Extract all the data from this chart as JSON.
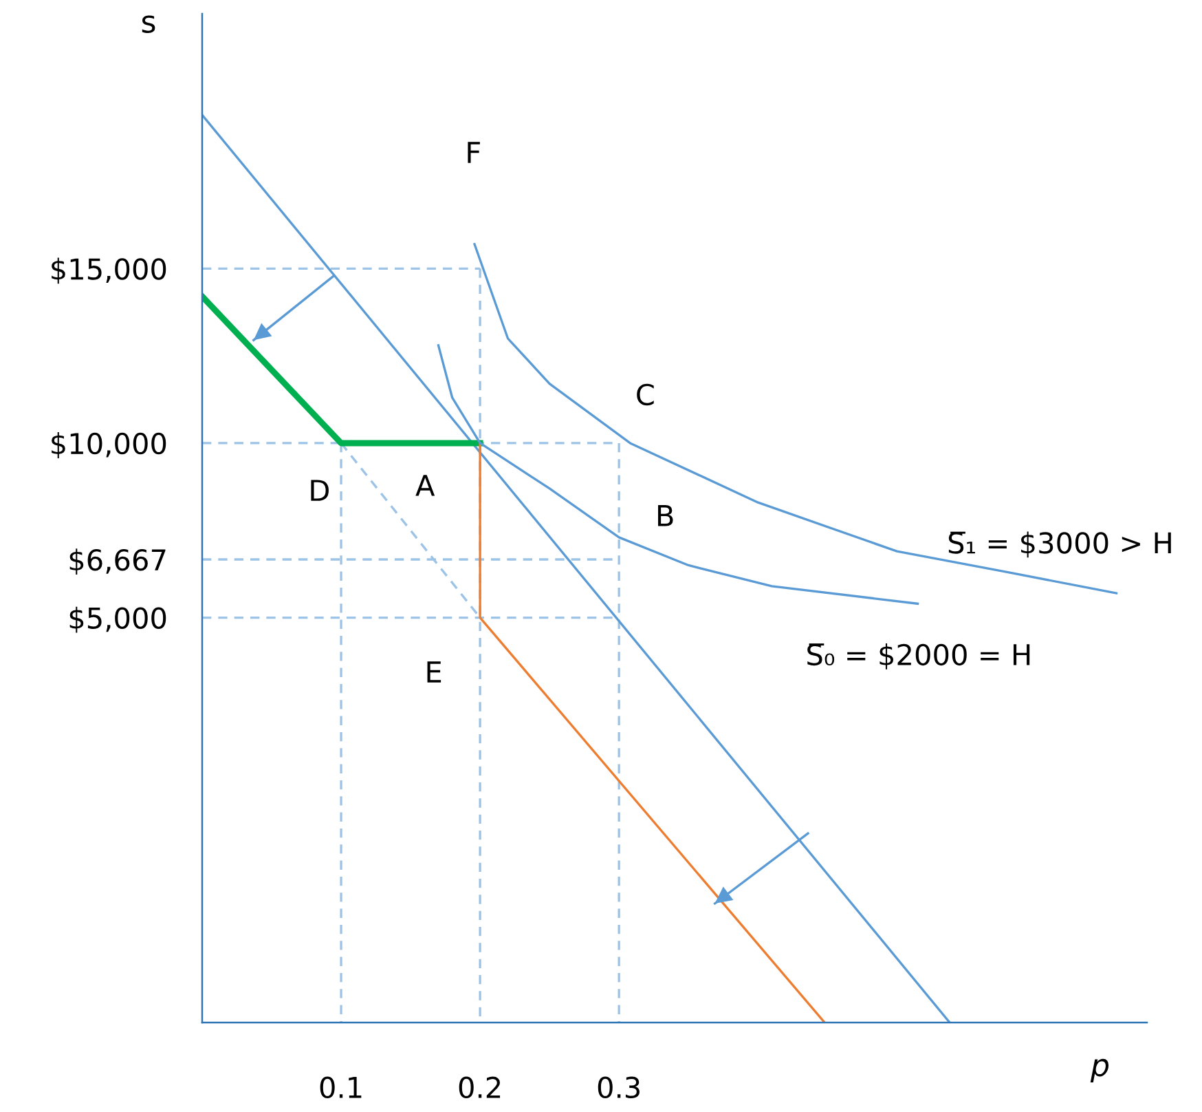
{
  "chart_data": {
    "type": "line",
    "xlabel": "p",
    "ylabel": "s",
    "xlim": [
      0,
      0.68
    ],
    "ylim": [
      -6600,
      22300
    ],
    "xticks": [
      0.1,
      0.2,
      0.3
    ],
    "yticks": [
      {
        "value": 5000,
        "label": "$5,000"
      },
      {
        "value": 6667,
        "label": "$6,667"
      },
      {
        "value": 10000,
        "label": "$10,000"
      },
      {
        "value": 15000,
        "label": "$15,000"
      }
    ],
    "grid": false,
    "series": [
      {
        "color": "#9dc3e6",
        "line_style": "dashed",
        "x": [
          0,
          0.2
        ],
        "values": [
          15000,
          15000
        ]
      },
      {
        "color": "#9dc3e6",
        "line_style": "dashed",
        "x": [
          0,
          0.3
        ],
        "values": [
          10000,
          10000
        ]
      },
      {
        "color": "#9dc3e6",
        "line_style": "dashed",
        "x": [
          0,
          0.3
        ],
        "values": [
          6667,
          6667
        ]
      },
      {
        "color": "#9dc3e6",
        "line_style": "dashed",
        "x": [
          0,
          0.3
        ],
        "values": [
          5000,
          5000
        ]
      },
      {
        "color": "#9dc3e6",
        "line_style": "dashed",
        "x": [
          0.1,
          0.1
        ],
        "values": [
          10000,
          -6600
        ]
      },
      {
        "color": "#9dc3e6",
        "line_style": "dashed",
        "x": [
          0.2,
          0.2
        ],
        "values": [
          15000,
          -6600
        ]
      },
      {
        "color": "#9dc3e6",
        "line_style": "dashed",
        "x": [
          0.3,
          0.3
        ],
        "values": [
          10000,
          -6600
        ]
      },
      {
        "color": "#9dc3e6",
        "line_style": "dashed",
        "x": [
          0.1,
          0.2
        ],
        "values": [
          10000,
          5000
        ]
      },
      {
        "color": "#5b9bd5",
        "x": [
          0,
          0.538
        ],
        "values": [
          19400,
          -6600
        ]
      },
      {
        "color": "#00b050",
        "x": [
          0,
          0.1,
          0.2
        ],
        "values": [
          14200,
          10000,
          10000
        ]
      },
      {
        "color": "#ed7d31",
        "x": [
          0.2,
          0.2,
          0.448
        ],
        "values": [
          10000,
          5000,
          -6600
        ]
      },
      {
        "name": "S̅₀ = $2000 = H",
        "color": "#5b9bd5",
        "x": [
          0.17,
          0.18,
          0.2,
          0.25,
          0.3,
          0.35,
          0.41,
          0.515
        ],
        "values": [
          12800,
          11300,
          10000,
          8700,
          7300,
          6500,
          5900,
          5400
        ]
      },
      {
        "name": "S̅₁ = $3000 > H",
        "color": "#5b9bd5",
        "x": [
          0.196,
          0.22,
          0.25,
          0.308,
          0.4,
          0.5,
          0.58,
          0.658
        ],
        "values": [
          15700,
          13000,
          11700,
          10000,
          8300,
          6900,
          6300,
          5700
        ]
      },
      {
        "color": "#5b9bd5",
        "x": [
          0.095,
          0.037
        ],
        "values": [
          14800,
          12950
        ]
      },
      {
        "color": "#5b9bd5",
        "x": [
          0.436,
          0.369
        ],
        "values": [
          -1180,
          -3190
        ]
      }
    ],
    "annotations": [
      "F",
      "C",
      "A",
      "D",
      "B",
      "E"
    ]
  }
}
